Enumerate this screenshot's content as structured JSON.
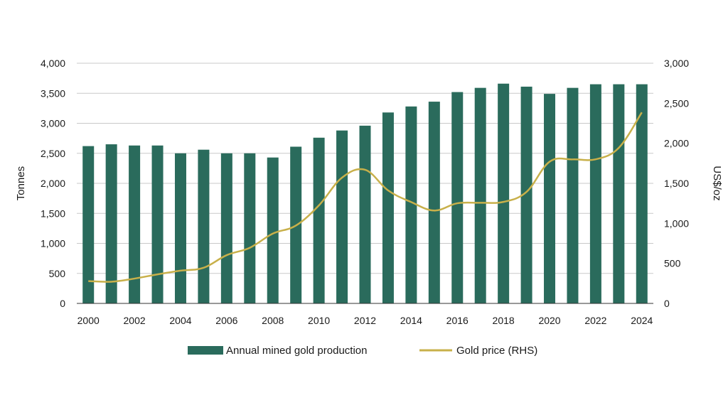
{
  "chart_data": {
    "type": "bar",
    "title": "",
    "x": [
      2000,
      2001,
      2002,
      2003,
      2004,
      2005,
      2006,
      2007,
      2008,
      2009,
      2010,
      2011,
      2012,
      2013,
      2014,
      2015,
      2016,
      2017,
      2018,
      2019,
      2020,
      2021,
      2022,
      2023,
      2024
    ],
    "x_tick_labels": [
      "2000",
      "2002",
      "2004",
      "2006",
      "2008",
      "2010",
      "2012",
      "2014",
      "2016",
      "2018",
      "2020",
      "2022",
      "2024"
    ],
    "ylabel": "Tonnes",
    "y2label": "US$/oz",
    "ylim": [
      0,
      4000
    ],
    "y2lim": [
      0,
      3000
    ],
    "y_tick_labels": [
      "0",
      "500",
      "1,000",
      "1,500",
      "2,000",
      "2,500",
      "3,000",
      "3,500",
      "4,000"
    ],
    "y2_tick_labels": [
      "0",
      "500",
      "1,000",
      "1,500",
      "2,000",
      "2,500",
      "3,000"
    ],
    "grid": "horizontal",
    "legend_position": "bottom",
    "series": [
      {
        "name": "Annual mined gold production",
        "type": "bar",
        "axis": "left",
        "color": "#2a6b5c",
        "values": [
          2620,
          2650,
          2630,
          2630,
          2500,
          2560,
          2500,
          2500,
          2430,
          2610,
          2760,
          2880,
          2960,
          3180,
          3280,
          3360,
          3520,
          3590,
          3660,
          3610,
          3490,
          3590,
          3650,
          3650,
          3650
        ]
      },
      {
        "name": "Gold price (RHS)",
        "type": "line",
        "axis": "right",
        "color": "#c8b04a",
        "values": [
          279,
          271,
          310,
          363,
          409,
          445,
          603,
          695,
          872,
          972,
          1225,
          1571,
          1669,
          1411,
          1266,
          1160,
          1251,
          1257,
          1268,
          1393,
          1770,
          1799,
          1800,
          1943,
          2386
        ]
      }
    ]
  }
}
